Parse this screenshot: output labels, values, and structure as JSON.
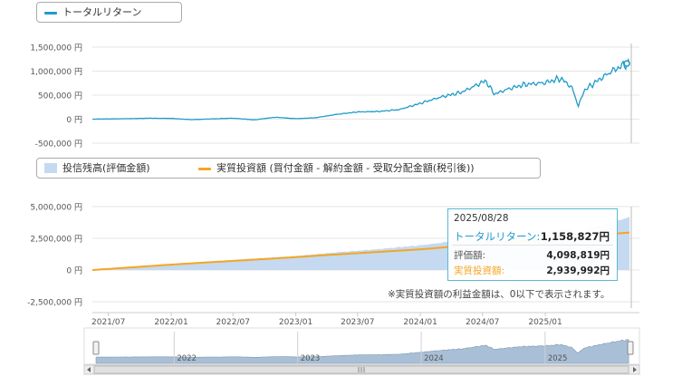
{
  "colors": {
    "total_return": "#1f9bc9",
    "valuation": "#c5d9f1",
    "investment": "#f5a623",
    "navigator_fill": "#a9bfd6",
    "axis_text": "#555555"
  },
  "legend_top": {
    "total_return_label": "トータルリターン"
  },
  "legend_bottom": {
    "valuation_label": "投信残高(評価金額)",
    "investment_label": "実質投資額 (買付金額 - 解約金額 - 受取分配金額(税引後))"
  },
  "tooltip": {
    "date": "2025/08/28",
    "total_return_label": "トータルリターン:",
    "total_return_value": "1,158,827円",
    "valuation_label": "評価額:",
    "valuation_value": "4,098,819円",
    "investment_label": "実質投資額:",
    "investment_value": "2,939,992円"
  },
  "note": "※実質投資額の利益金額は、0以下で表示されます。",
  "chart_data": [
    {
      "type": "line",
      "name": "total-return-chart",
      "y_tick_labels": [
        "1,500,000 円",
        "1,000,000 円",
        "500,000 円",
        "0 円",
        "-500,000 円"
      ],
      "ylim": [
        -500000,
        1500000
      ],
      "xlim": [
        "2021-05-15",
        "2025-09-10"
      ],
      "grid": true,
      "legend": "top-left",
      "series": [
        {
          "name": "トータルリターン",
          "x": [
            "2021-05-15",
            "2021-07-01",
            "2021-09-01",
            "2021-11-01",
            "2022-01-01",
            "2022-03-01",
            "2022-05-01",
            "2022-07-01",
            "2022-09-01",
            "2022-11-01",
            "2023-01-01",
            "2023-03-01",
            "2023-05-01",
            "2023-07-01",
            "2023-09-01",
            "2023-11-01",
            "2024-01-01",
            "2024-03-01",
            "2024-05-01",
            "2024-07-10",
            "2024-08-05",
            "2024-09-15",
            "2024-11-01",
            "2025-01-01",
            "2025-02-15",
            "2025-03-20",
            "2025-04-08",
            "2025-04-25",
            "2025-06-01",
            "2025-07-15",
            "2025-08-28",
            "2025-09-05"
          ],
          "values": [
            0,
            5000,
            10000,
            20000,
            15000,
            -10000,
            5000,
            20000,
            -15000,
            40000,
            10000,
            30000,
            100000,
            150000,
            160000,
            200000,
            330000,
            460000,
            560000,
            800000,
            520000,
            630000,
            720000,
            760000,
            850000,
            660000,
            270000,
            600000,
            790000,
            1000000,
            1158827,
            1160000
          ]
        }
      ]
    },
    {
      "type": "area",
      "name": "balance-chart",
      "y_tick_labels": [
        "5,000,000 円",
        "2,500,000 円",
        "0 円",
        "-2,500,000 円"
      ],
      "ylim": [
        -2500000,
        5000000
      ],
      "xlim": [
        "2021-05-15",
        "2025-09-10"
      ],
      "x_tick_labels": [
        "2021/07",
        "2022/01",
        "2022/07",
        "2023/01",
        "2023/07",
        "2024/01",
        "2024/07",
        "2025/01"
      ],
      "grid": true,
      "legend": "top-left",
      "series": [
        {
          "name": "投信残高(評価金額)",
          "x": [
            "2021-05-15",
            "2021-09-01",
            "2022-01-01",
            "2022-05-01",
            "2022-09-01",
            "2023-01-01",
            "2023-05-01",
            "2023-09-01",
            "2024-01-01",
            "2024-05-01",
            "2024-07-10",
            "2024-08-05",
            "2024-11-01",
            "2025-01-01",
            "2025-03-20",
            "2025-04-08",
            "2025-06-01",
            "2025-08-28",
            "2025-09-05"
          ],
          "values": [
            0,
            220000,
            480000,
            700000,
            900000,
            1100000,
            1400000,
            1650000,
            1950000,
            2350000,
            2850000,
            2550000,
            2950000,
            3150000,
            3200000,
            2900000,
            3500000,
            4098819,
            4150000
          ]
        },
        {
          "name": "実質投資額 (買付金額 - 解約金額 - 受取分配金額(税引後))",
          "x": [
            "2021-05-15",
            "2021-09-01",
            "2022-01-01",
            "2022-05-01",
            "2022-09-01",
            "2023-01-01",
            "2023-05-01",
            "2023-09-01",
            "2024-01-01",
            "2024-05-01",
            "2024-09-01",
            "2025-01-01",
            "2025-05-01",
            "2025-08-28",
            "2025-09-05"
          ],
          "values": [
            0,
            200000,
            430000,
            620000,
            820000,
            1020000,
            1230000,
            1430000,
            1630000,
            1900000,
            2150000,
            2400000,
            2680000,
            2939992,
            2960000
          ]
        }
      ]
    },
    {
      "type": "area",
      "name": "navigator",
      "x_tick_labels": [
        "2022",
        "2023",
        "2024",
        "2025"
      ]
    }
  ]
}
